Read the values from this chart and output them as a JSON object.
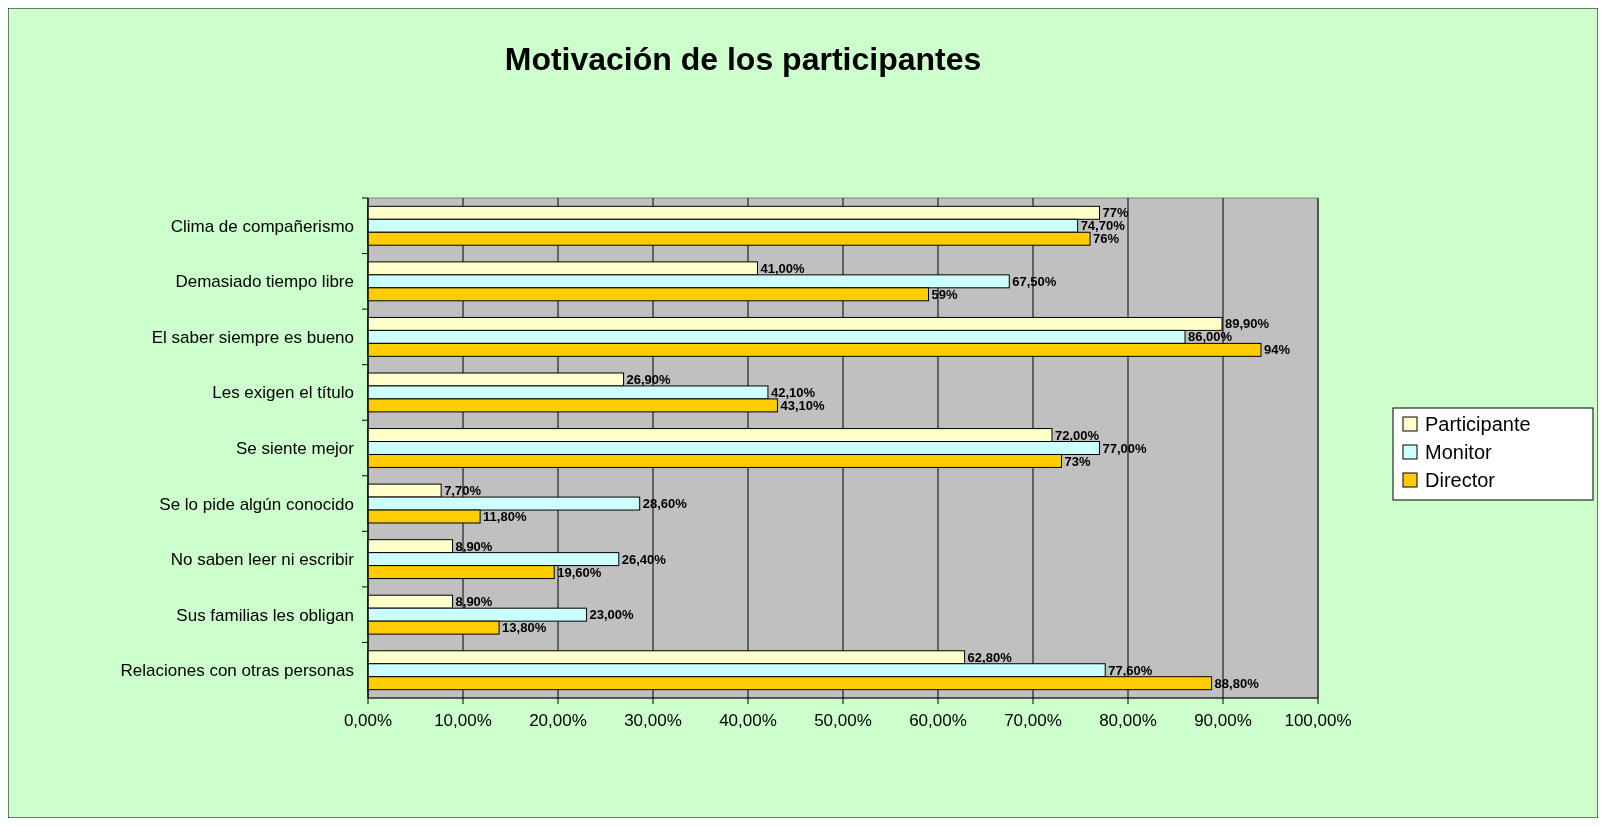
{
  "chart_data": {
    "type": "bar",
    "orientation": "horizontal",
    "title": "Motivación de los participantes",
    "categories": [
      "Clima de compañerismo",
      "Demasiado tiempo libre",
      "El saber siempre es bueno",
      "Les exigen el título",
      "Se siente mejor",
      "Se lo pide algún conocido",
      "No saben leer ni escribir",
      "Sus familias les obligan",
      "Relaciones con otras personas"
    ],
    "series": [
      {
        "name": "Participante",
        "color": "#ffffcc",
        "values": [
          77,
          41,
          89.9,
          26.9,
          72,
          7.7,
          8.9,
          8.9,
          62.8
        ],
        "value_labels": [
          "77%",
          "41,00%",
          "89,90%",
          "26,90%",
          "72,00%",
          "7,70%",
          "8,90%",
          "8,90%",
          "62,80%"
        ]
      },
      {
        "name": "Monitor",
        "color": "#ccffff",
        "values": [
          74.7,
          67.5,
          86,
          42.1,
          77,
          28.6,
          26.4,
          23,
          77.6
        ],
        "value_labels": [
          "74,70%",
          "67,50%",
          "86,00%",
          "42,10%",
          "77,00%",
          "28,60%",
          "26,40%",
          "23,00%",
          "77,60%"
        ]
      },
      {
        "name": "Director",
        "color": "#ffcc00",
        "values": [
          76,
          59,
          94,
          43.1,
          73,
          11.8,
          19.6,
          13.8,
          88.8
        ],
        "value_labels": [
          "76%",
          "59%",
          "94%",
          "43,10%",
          "73%",
          "11,80%",
          "19,60%",
          "13,80%",
          "88,80%"
        ]
      }
    ],
    "xlim": [
      0,
      100
    ],
    "xticks": [
      {
        "value": 0,
        "label": "0,00%"
      },
      {
        "value": 10,
        "label": "10,00%"
      },
      {
        "value": 20,
        "label": "20,00%"
      },
      {
        "value": 30,
        "label": "30,00%"
      },
      {
        "value": 40,
        "label": "40,00%"
      },
      {
        "value": 50,
        "label": "50,00%"
      },
      {
        "value": 60,
        "label": "60,00%"
      },
      {
        "value": 70,
        "label": "70,00%"
      },
      {
        "value": 80,
        "label": "80,00%"
      },
      {
        "value": 90,
        "label": "90,00%"
      },
      {
        "value": 100,
        "label": "100,00%"
      }
    ],
    "grid": "x",
    "legend": "right"
  }
}
